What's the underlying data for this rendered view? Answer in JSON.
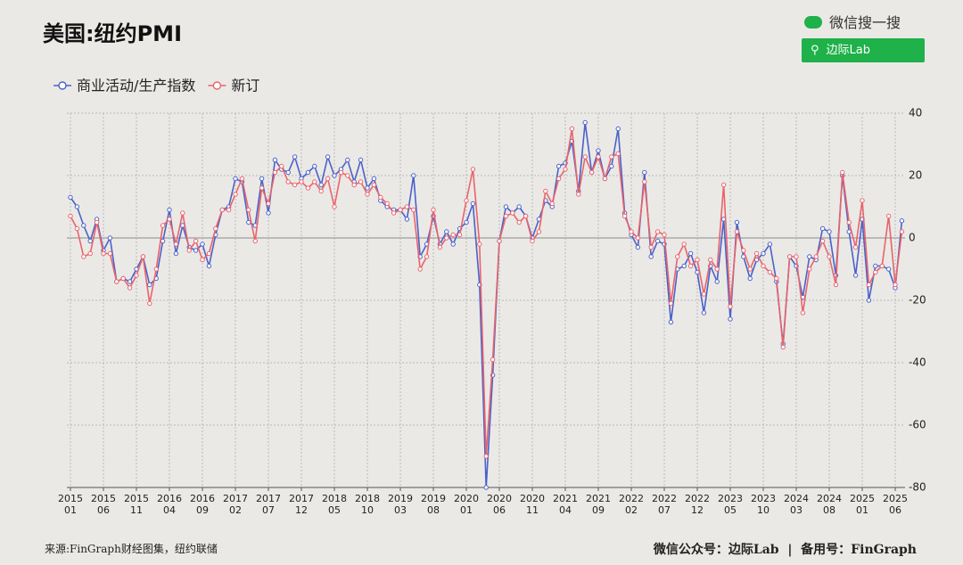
{
  "chart_data": {
    "type": "line",
    "title": "美国:纽约PMI",
    "categories": [
      "2015\n01",
      null,
      null,
      null,
      null,
      "2015\n06",
      null,
      null,
      null,
      null,
      "2015\n11",
      null,
      null,
      null,
      null,
      "2016\n04",
      null,
      null,
      null,
      null,
      "2016\n09",
      null,
      null,
      null,
      null,
      "2017\n02",
      null,
      null,
      null,
      null,
      "2017\n07",
      null,
      null,
      null,
      null,
      "2017\n12",
      null,
      null,
      null,
      null,
      "2018\n05",
      null,
      null,
      null,
      null,
      "2018\n10",
      null,
      null,
      null,
      null,
      "2019\n03",
      null,
      null,
      null,
      null,
      "2019\n08",
      null,
      null,
      null,
      null,
      "2020\n01",
      null,
      null,
      null,
      null,
      "2020\n06",
      null,
      null,
      null,
      null,
      "2020\n11",
      null,
      null,
      null,
      null,
      "2021\n04",
      null,
      null,
      null,
      null,
      "2021\n09",
      null,
      null,
      null,
      null,
      "2022\n02",
      null,
      null,
      null,
      null,
      "2022\n07",
      null,
      null,
      null,
      null,
      "2022\n12",
      null,
      null,
      null,
      null,
      "2023\n05",
      null,
      null,
      null,
      null,
      "2023\n10",
      null,
      null,
      null,
      null,
      "2024\n03",
      null,
      null,
      null,
      null,
      "2024\n08",
      null,
      null,
      null,
      null,
      "2025\n01",
      null,
      null,
      null,
      null,
      "2025\n06",
      null
    ],
    "series": [
      {
        "name": "商业活动/生产指数",
        "color": "#4a62c9",
        "values": [
          13,
          10,
          4,
          -1,
          6,
          -4,
          0,
          -14,
          -13,
          -14,
          -10,
          -6,
          -15,
          -13,
          -1,
          9,
          -5,
          4,
          -3,
          -4,
          -2,
          -9,
          1,
          9,
          10,
          19,
          18,
          5,
          4,
          19,
          8,
          25,
          22,
          21,
          26,
          19,
          21,
          23,
          17,
          26,
          20,
          22,
          25,
          18,
          25,
          16,
          19,
          12,
          10,
          9,
          9,
          6,
          20,
          -6,
          -2,
          7,
          -2,
          2,
          -2,
          3,
          5,
          11,
          -15,
          -80,
          -44,
          -1,
          10,
          8,
          10,
          7,
          0,
          6,
          12,
          10,
          23,
          24,
          31,
          15,
          37,
          21,
          28,
          19,
          23,
          35,
          8,
          1,
          -3,
          21,
          -6,
          -1,
          -2,
          -27,
          -10,
          -9,
          -5,
          -11,
          -24,
          -9,
          -14,
          6,
          -26,
          5,
          -6,
          -13,
          -7,
          -5,
          -2,
          -14,
          -34,
          -6,
          -9,
          -19,
          -6,
          -7,
          3,
          2,
          -12,
          20,
          2,
          -12,
          6,
          -20,
          -9,
          -9,
          -10,
          -16,
          5.5
        ]
      },
      {
        "name": "新订",
        "color": "#e8646b",
        "values": [
          7,
          3,
          -6,
          -5,
          5,
          -5,
          -5,
          -14,
          -13,
          -16,
          -12,
          -6,
          -21,
          -10,
          4,
          6,
          -2,
          8,
          -4,
          -1,
          -7,
          -5,
          3,
          9,
          9,
          14,
          19,
          9,
          -1,
          16,
          11,
          21,
          23,
          18,
          17,
          18,
          16,
          18,
          15,
          19,
          10,
          21,
          20,
          17,
          18,
          14,
          17,
          13,
          11,
          8,
          9,
          10,
          9,
          -10,
          -6,
          9,
          -3,
          0,
          1,
          1,
          12,
          22,
          -2,
          -70,
          -39,
          -1,
          7,
          8,
          5,
          7,
          -1,
          2,
          15,
          11,
          19,
          22,
          35,
          14,
          26,
          21,
          26,
          19,
          26,
          27,
          7,
          2,
          0,
          18,
          -3,
          2,
          1,
          -21,
          -6,
          -2,
          -9,
          -7,
          -18,
          -7,
          -10,
          17,
          -22,
          2,
          -4,
          -10,
          -5,
          -9,
          -11,
          -13,
          -35,
          -6,
          -6,
          -24,
          -10,
          -6,
          -1,
          -6,
          -15,
          21,
          5,
          -3,
          12,
          -15,
          -11,
          -9,
          7,
          -15,
          2
        ]
      }
    ],
    "ylim": [
      -80,
      40
    ],
    "yticks": [
      40,
      20,
      0,
      -20,
      -40,
      -60,
      -80
    ],
    "grid": true,
    "legend": "top-left"
  },
  "header": {
    "search": "微信搜一搜",
    "account": "边际Lab"
  },
  "footer": {
    "source": "来源:FinGraph财经图集，纽约联储",
    "credit": "微信公众号：边际Lab  |  备用号：FinGraph"
  }
}
